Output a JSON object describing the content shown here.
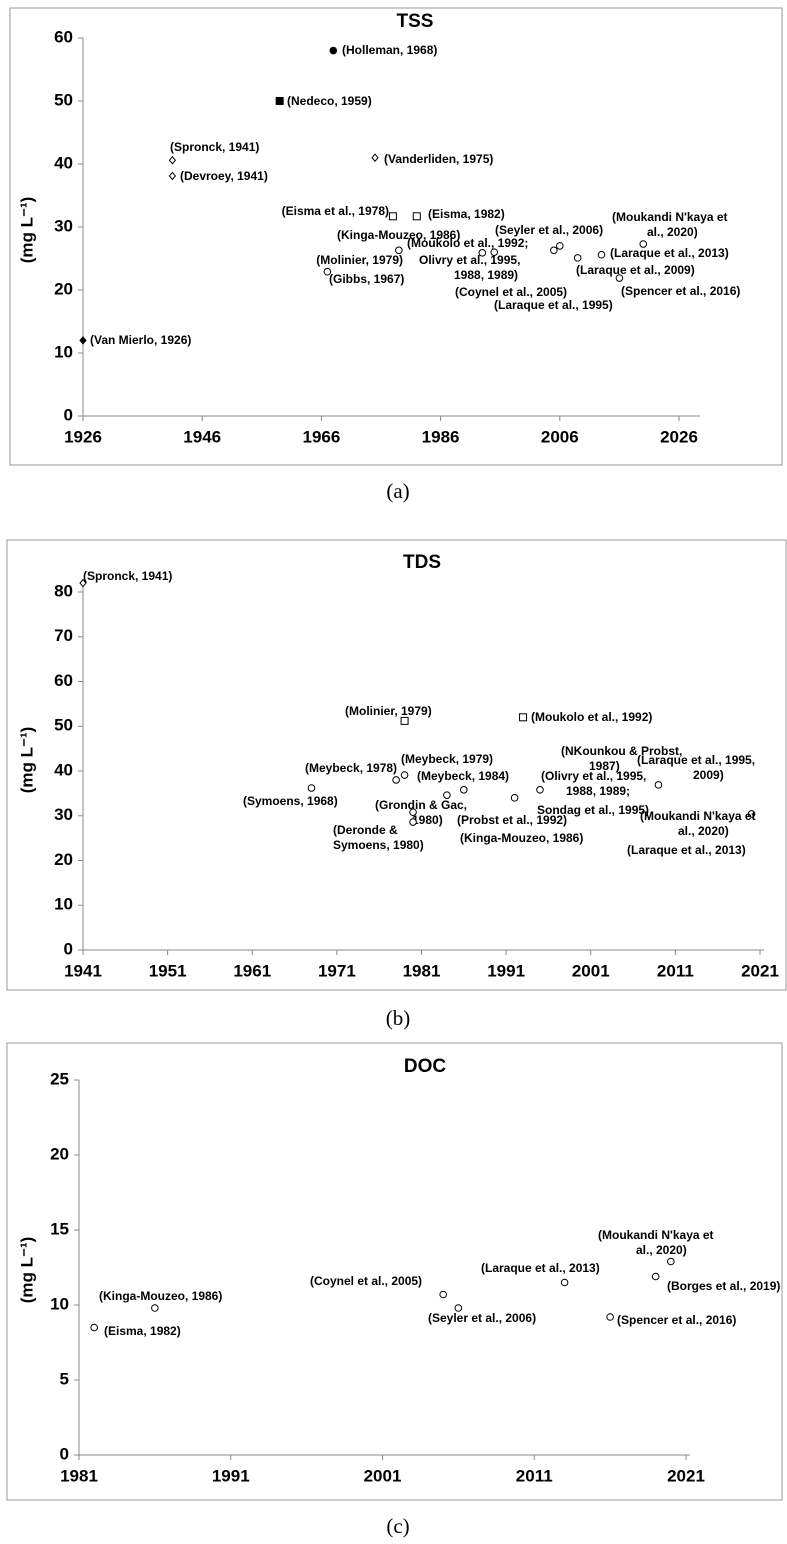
{
  "chart_data": [
    {
      "type": "scatter",
      "title": "TSS",
      "ylabel": "(mg L⁻¹)",
      "caption": "(a)",
      "xlim": [
        1926,
        2026
      ],
      "xticks": [
        1926,
        1946,
        1966,
        1986,
        2006,
        2026
      ],
      "ylim": [
        0,
        60
      ],
      "yticks": [
        0,
        10,
        20,
        30,
        40,
        50,
        60
      ],
      "x": [
        1926,
        1941,
        1941,
        1959,
        1968,
        1975,
        1978,
        1982,
        1967,
        1979,
        1993,
        1995,
        2005,
        2006,
        2009,
        2013,
        2016,
        2020
      ],
      "values": [
        12,
        40.6,
        38.1,
        50,
        58,
        41,
        31.7,
        31.7,
        22.9,
        26.3,
        25.9,
        26,
        26.3,
        27,
        25.1,
        25.6,
        21.9,
        27.3
      ],
      "markers": [
        "filled-diamond",
        "diamond",
        "diamond",
        "filled-square",
        "filled-circle",
        "diamond",
        "square",
        "square",
        "circle",
        "circle",
        "circle",
        "circle",
        "circle",
        "circle",
        "circle",
        "circle",
        "circle",
        "circle"
      ],
      "labels": [
        "(Van Mierlo, 1926)",
        "(Spronck, 1941)",
        "(Devroey, 1941)",
        "(Nedeco, 1959)",
        "(Holleman, 1968)",
        "(Vanderliden, 1975)",
        "(Eisma et al., 1978)",
        "(Eisma, 1982)",
        "(Gibbs, 1967)",
        "(Molinier, 1979)",
        "(Moukolo et al., 1992;",
        [
          "Olivry et al., 1995,",
          "1988, 1989)"
        ],
        "(Coynel et al., 2005)",
        "(Seyler et al., 2006)",
        "(Laraque et al., 2009)",
        "(Laraque et al., 2013)",
        "(Spencer et al., 2016)",
        [
          "(Moukandi N'kaya et",
          "al., 2020)"
        ]
      ],
      "annotations": [
        "(Kinga-Mouzeo, 1986)",
        "(Laraque et al., 1995)"
      ]
    },
    {
      "type": "scatter",
      "title": "TDS",
      "ylabel": "(mg L⁻¹)",
      "caption": "(b)",
      "xlim": [
        1941,
        2021
      ],
      "xticks": [
        1941,
        1951,
        1961,
        1971,
        1981,
        1991,
        2001,
        2011,
        2021
      ],
      "ylim": [
        0,
        80
      ],
      "yticks": [
        0,
        10,
        20,
        30,
        40,
        50,
        60,
        70,
        80
      ],
      "x": [
        1941,
        1979,
        1993,
        1968,
        1978,
        1979,
        1980,
        1980,
        1984,
        1986,
        1992,
        1995,
        2009,
        2020
      ],
      "values": [
        82,
        51.2,
        52,
        36.2,
        38,
        39.1,
        30.8,
        28.6,
        34.6,
        35.8,
        34,
        35.8,
        36.9,
        30.4
      ],
      "markers": [
        "diamond",
        "square",
        "square",
        "circle",
        "circle",
        "circle",
        "circle",
        "circle",
        "circle",
        "circle",
        "circle",
        "circle",
        "circle",
        "circle"
      ],
      "labels": [
        "(Spronck, 1941)",
        "(Molinier, 1979)",
        "(Moukolo et al., 1992)",
        "(Symoens, 1968)",
        "(Meybeck, 1978)",
        "(Meybeck, 1979)",
        [
          "(Grondin & Gac,",
          "1980)"
        ],
        [
          "(Deronde &",
          "Symoens, 1980)"
        ],
        "(Meybeck, 1984)",
        "(Kinga-Mouzeo, 1986)",
        "(Probst et al., 1992)",
        [
          "(Olivry et al., 1995,",
          "1988, 1989;"
        ],
        [
          "(Laraque et al., 1995,",
          "2009)"
        ],
        [
          "(Moukandi N'kaya et",
          "al., 2020)"
        ]
      ],
      "annotations": [
        [
          "(NKounkou & Probst,",
          "1987)"
        ],
        "Sondag et al., 1995)",
        "(Laraque et al., 2013)"
      ]
    },
    {
      "type": "scatter",
      "title": "DOC",
      "ylabel": "(mg L⁻¹)",
      "caption": "(c)",
      "xlim": [
        1981,
        2021
      ],
      "xticks": [
        1981,
        1991,
        2001,
        2011,
        2021
      ],
      "ylim": [
        0,
        25
      ],
      "yticks": [
        0,
        5,
        10,
        15,
        20,
        25
      ],
      "x": [
        1982,
        1986,
        2005,
        2006,
        2013,
        2016,
        2019,
        2020
      ],
      "values": [
        8.5,
        9.8,
        10.7,
        9.8,
        11.5,
        9.2,
        11.9,
        12.9
      ],
      "markers": [
        "circle",
        "circle",
        "circle",
        "circle",
        "circle",
        "circle",
        "circle",
        "circle"
      ],
      "labels": [
        "(Eisma, 1982)",
        "(Kinga-Mouzeo, 1986)",
        "(Coynel et al., 2005)",
        "(Seyler et al., 2006)",
        "(Laraque et al., 2013)",
        "(Spencer et al., 2016)",
        "(Borges et al., 2019)",
        [
          "(Moukandi N'kaya et",
          "al., 2020)"
        ]
      ],
      "annotations": []
    }
  ]
}
